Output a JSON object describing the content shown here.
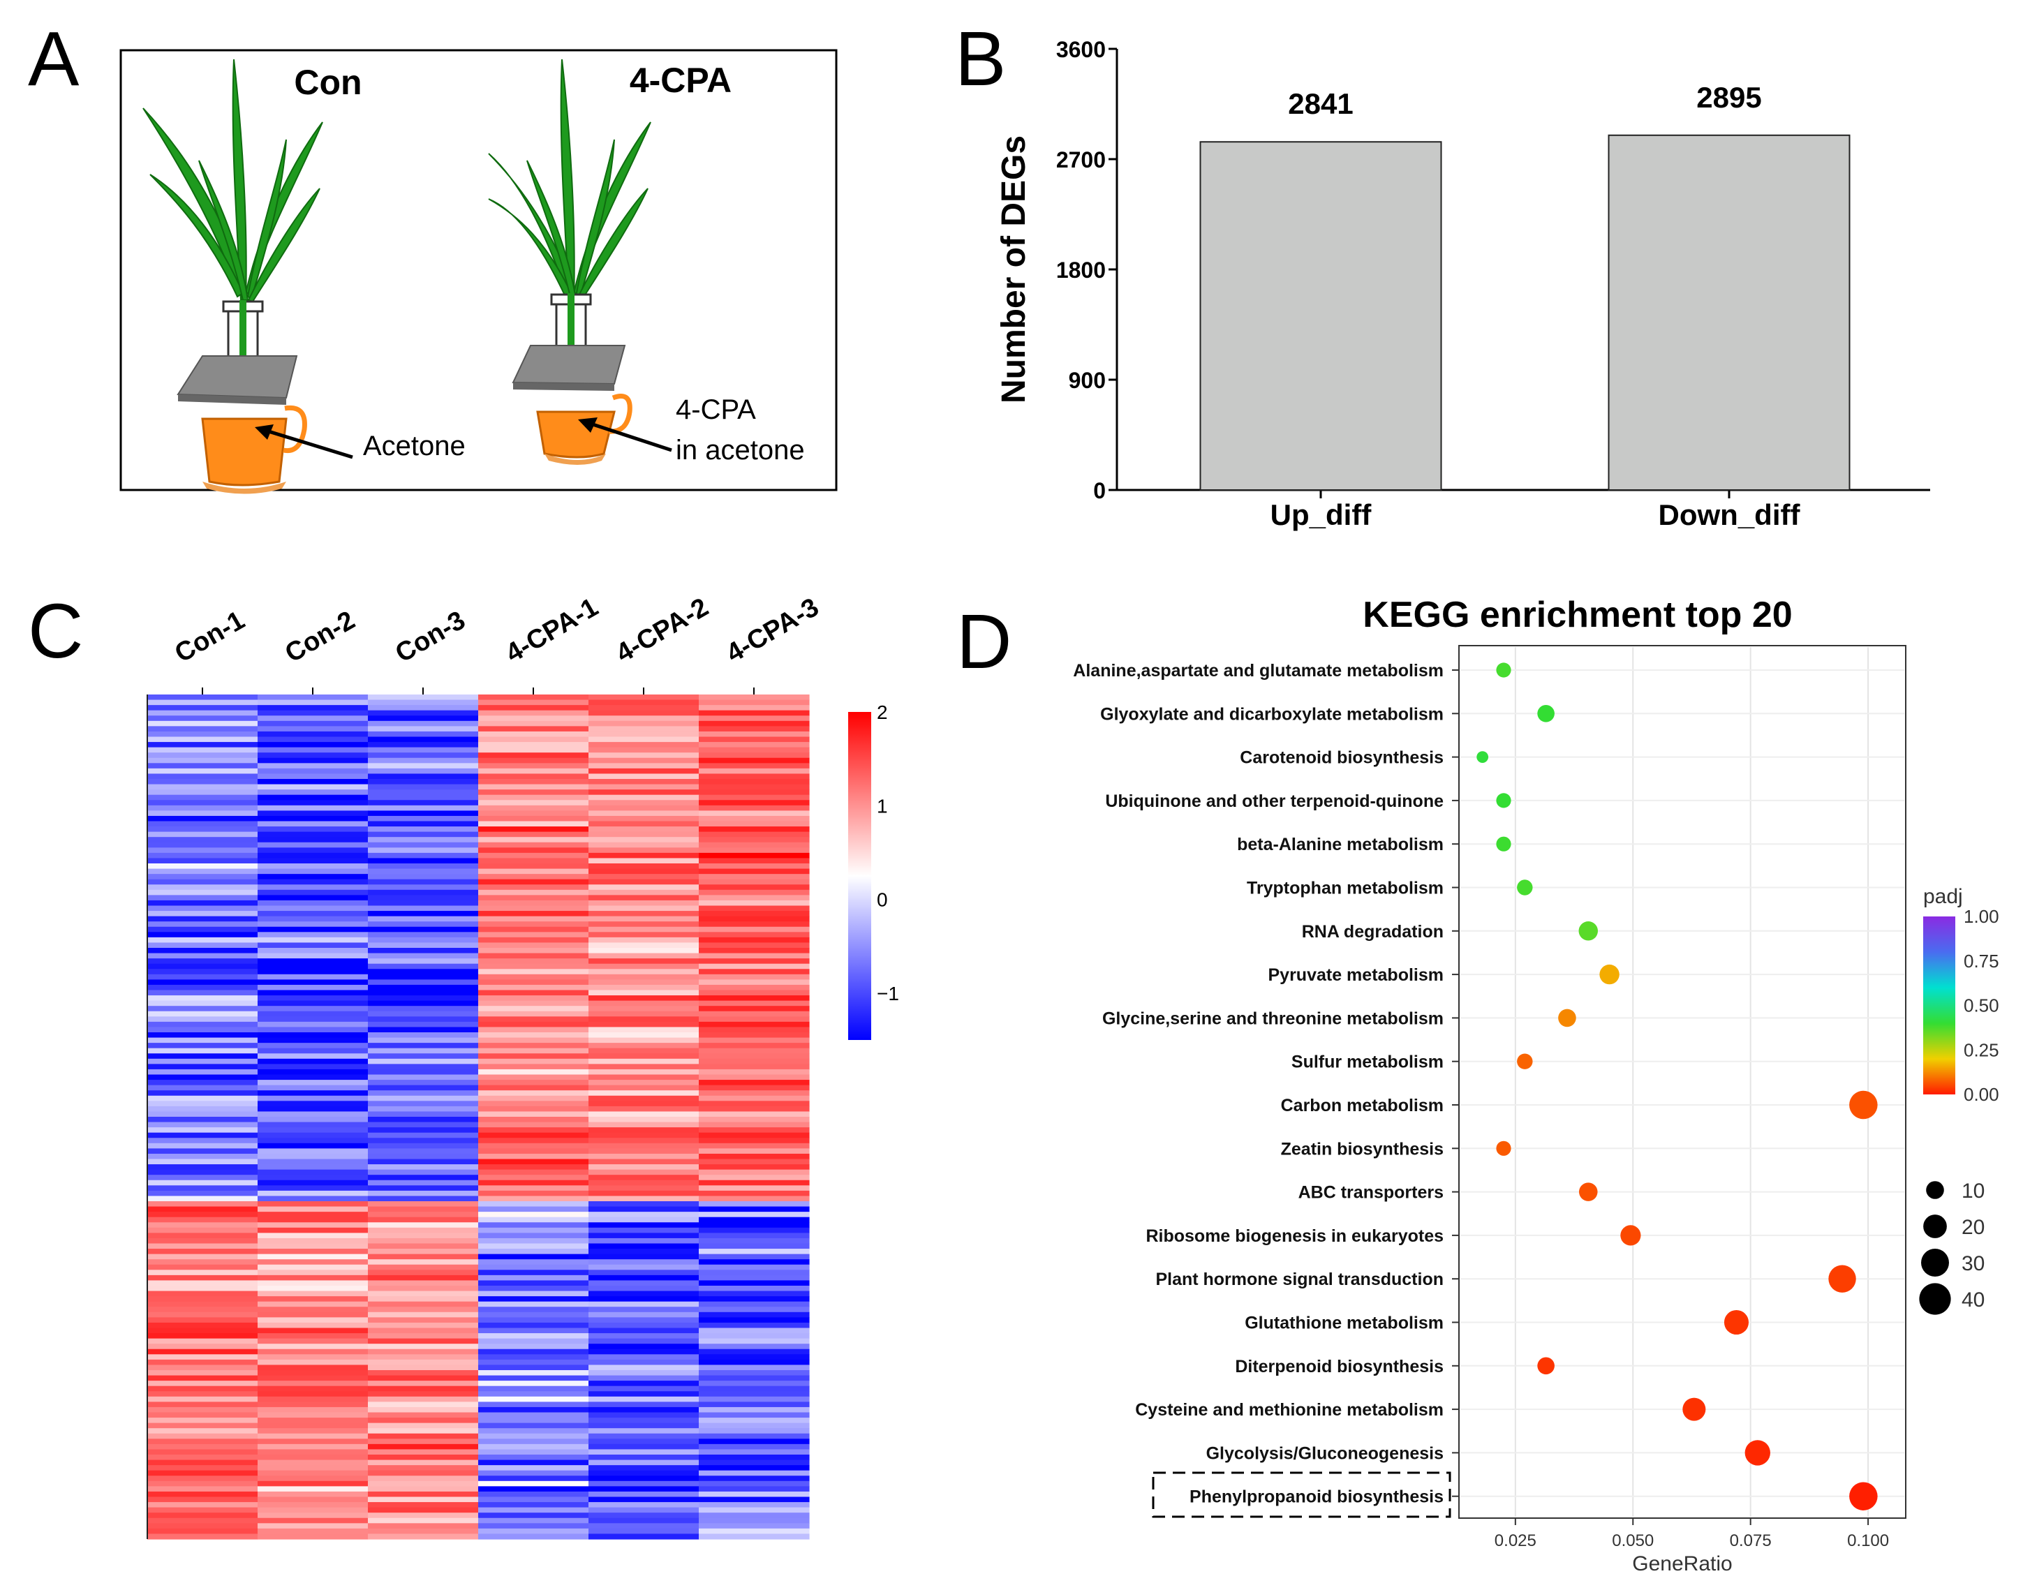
{
  "panel_letters": {
    "a": "A",
    "b": "B",
    "c": "C",
    "d": "D"
  },
  "panel_a": {
    "label_con": "Con",
    "label_cpa": "4-CPA",
    "annot_left": "Acetone",
    "annot_right_line1": "4-CPA",
    "annot_right_line2": "in acetone",
    "colors": {
      "leaf": "#1e9a1e",
      "pot": "#ff8c1a",
      "plate": "#8a8a8a"
    }
  },
  "chart_data": [
    {
      "type": "bar",
      "panel": "B",
      "categories": [
        "Up_diff",
        "Down_diff"
      ],
      "values": [
        2841,
        2895
      ],
      "data_labels": [
        "2841",
        "2895"
      ],
      "ylabel": "Number of DEGs",
      "xlabel": "",
      "ylim": [
        0,
        3600
      ],
      "yticks": [
        0,
        900,
        1800,
        2700,
        3600
      ],
      "ytick_labels": [
        "0",
        "900",
        "1800",
        "2700",
        "3600"
      ],
      "bar_color": "#c8c9c8",
      "grid": false
    },
    {
      "type": "heatmap",
      "panel": "C",
      "columns": [
        "Con-1",
        "Con-2",
        "Con-3",
        "4-CPA-1",
        "4-CPA-2",
        "4-CPA-3"
      ],
      "cluster_rows_fraction": [
        0.6,
        0.4
      ],
      "cluster_means": [
        [
          -0.8,
          -1.0,
          -1.0,
          1.0,
          0.9,
          1.2
        ],
        [
          1.1,
          0.9,
          1.0,
          -0.7,
          -1.0,
          -1.0
        ]
      ],
      "color_range": [
        -1.5,
        2
      ],
      "color_scale": [
        "#0000ff",
        "#ffffff",
        "#ff0000"
      ],
      "colorbar_ticks": [
        2,
        1,
        0,
        -1
      ],
      "colorbar_tick_labels": [
        "2",
        "1",
        "0",
        "−1"
      ]
    },
    {
      "type": "scatter",
      "panel": "D",
      "title": "KEGG enrichment top 20",
      "xlabel": "GeneRatio",
      "xlim": [
        0.013,
        0.108
      ],
      "xticks": [
        0.025,
        0.05,
        0.075,
        0.1
      ],
      "xtick_labels": [
        "0.025",
        "0.050",
        "0.075",
        "0.100"
      ],
      "grid": true,
      "legend_color_title": "padj",
      "legend_color_ticks": [
        "1.00",
        "0.75",
        "0.50",
        "0.25",
        "0.00"
      ],
      "legend_size_values": [
        10,
        20,
        30,
        40
      ],
      "legend_size_labels": [
        "10",
        "20",
        "30",
        "40"
      ],
      "highlighted_term": "Phenylpropanoid biosynthesis",
      "points": [
        {
          "term": "Alanine,aspartate and glutamate metabolism",
          "ratio": 0.0225,
          "padj": 0.38,
          "count": 6
        },
        {
          "term": "Glyoxylate and dicarboxylate metabolism",
          "ratio": 0.0315,
          "padj": 0.4,
          "count": 9
        },
        {
          "term": "Carotenoid biosynthesis",
          "ratio": 0.018,
          "padj": 0.41,
          "count": 3
        },
        {
          "term": "Ubiquinone and other terpenoid-quinone",
          "ratio": 0.0225,
          "padj": 0.4,
          "count": 6
        },
        {
          "term": "beta-Alanine metabolism",
          "ratio": 0.0225,
          "padj": 0.39,
          "count": 6
        },
        {
          "term": "Tryptophan metabolism",
          "ratio": 0.027,
          "padj": 0.38,
          "count": 7
        },
        {
          "term": "RNA degradation",
          "ratio": 0.0405,
          "padj": 0.36,
          "count": 12
        },
        {
          "term": "Pyruvate metabolism",
          "ratio": 0.045,
          "padj": 0.16,
          "count": 13
        },
        {
          "term": "Glycine,serine and threonine metabolism",
          "ratio": 0.036,
          "padj": 0.12,
          "count": 10
        },
        {
          "term": "Sulfur metabolism",
          "ratio": 0.027,
          "padj": 0.08,
          "count": 7
        },
        {
          "term": "Carbon metabolism",
          "ratio": 0.099,
          "padj": 0.06,
          "count": 31
        },
        {
          "term": "Zeatin biosynthesis",
          "ratio": 0.0225,
          "padj": 0.07,
          "count": 6
        },
        {
          "term": "ABC transporters",
          "ratio": 0.0405,
          "padj": 0.06,
          "count": 11
        },
        {
          "term": "Ribosome biogenesis in eukaryotes",
          "ratio": 0.0495,
          "padj": 0.05,
          "count": 14
        },
        {
          "term": "Plant hormone signal transduction",
          "ratio": 0.0945,
          "padj": 0.04,
          "count": 29
        },
        {
          "term": "Glutathione metabolism",
          "ratio": 0.072,
          "padj": 0.03,
          "count": 22
        },
        {
          "term": "Diterpenoid biosynthesis",
          "ratio": 0.0315,
          "padj": 0.03,
          "count": 9
        },
        {
          "term": "Cysteine and methionine metabolism",
          "ratio": 0.063,
          "padj": 0.025,
          "count": 19
        },
        {
          "term": "Glycolysis/Gluconeogenesis",
          "ratio": 0.0765,
          "padj": 0.015,
          "count": 24
        },
        {
          "term": "Phenylpropanoid biosynthesis",
          "ratio": 0.099,
          "padj": 0.005,
          "count": 31
        }
      ]
    }
  ]
}
